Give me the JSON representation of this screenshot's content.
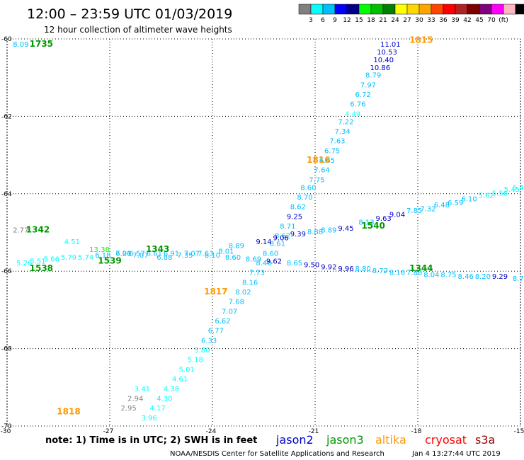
{
  "header": {
    "title": "12:00 – 23:59 UTC 01/03/2019",
    "subtitle": "12 hour collection of altimeter wave heights"
  },
  "colorbar": {
    "colors": [
      "#808080",
      "#00ffff",
      "#00bfff",
      "#0000ff",
      "#00008b",
      "#00ff00",
      "#00c000",
      "#008000",
      "#ffff00",
      "#ffd700",
      "#ffa500",
      "#ff4500",
      "#ff0000",
      "#b22222",
      "#800000",
      "#800080",
      "#ff00ff",
      "#ffb6c1",
      "#000000"
    ],
    "labels": [
      "3",
      "6",
      "9",
      "12",
      "15",
      "18",
      "21",
      "24",
      "27",
      "30",
      "33",
      "36",
      "39",
      "42",
      "45",
      "70",
      "(ft)"
    ]
  },
  "note": "note:  1) Time is in UTC; 2) SWH is in feet",
  "legend": [
    {
      "label": "jason2",
      "color": "#0000cc"
    },
    {
      "label": "jason3",
      "color": "#009900"
    },
    {
      "label": "altika",
      "color": "#ff9900"
    },
    {
      "label": "cryosat",
      "color": "#ff0000"
    },
    {
      "label": "s3a",
      "color": "#990000"
    }
  ],
  "footer": {
    "credit": "NOAA/NESDIS Center for Satellite Applications and Research",
    "timestamp": "Jan  4 13:27:44 UTC 2019"
  },
  "chart_data": {
    "type": "scatter",
    "title": "12:00 – 23:59 UTC 01/03/2019",
    "xlim": [
      -30,
      -15
    ],
    "ylim": [
      -70,
      -60
    ],
    "x_ticks": [
      -30,
      -27,
      -24,
      -21,
      -18,
      -15
    ],
    "x_tick_labels": [
      "-30",
      "-27",
      "-24",
      "-21",
      "-18",
      "-15"
    ],
    "y_ticks": [
      -70,
      -68,
      -66,
      -64,
      -62,
      -60
    ],
    "y_tick_labels": [
      "-70",
      "-68",
      "-66",
      "-64",
      "-62",
      "-60"
    ],
    "grid": true,
    "time_labels": [
      {
        "text": "1815",
        "x": -17.9,
        "y": -60.1,
        "color": "#ff9900"
      },
      {
        "text": "1735",
        "x": -29.0,
        "y": -60.2,
        "color": "#009900"
      },
      {
        "text": "1816",
        "x": -20.9,
        "y": -63.2,
        "color": "#ff9900"
      },
      {
        "text": "1342",
        "x": -29.1,
        "y": -65.0,
        "color": "#009900"
      },
      {
        "text": "1540",
        "x": -19.3,
        "y": -64.9,
        "color": "#009900"
      },
      {
        "text": "1343",
        "x": -25.6,
        "y": -65.5,
        "color": "#009900"
      },
      {
        "text": "1539",
        "x": -27.0,
        "y": -65.8,
        "color": "#009900"
      },
      {
        "text": "1538",
        "x": -29.0,
        "y": -66.0,
        "color": "#009900"
      },
      {
        "text": "1344",
        "x": -17.9,
        "y": -66.0,
        "color": "#009900"
      },
      {
        "text": "1817",
        "x": -23.9,
        "y": -66.6,
        "color": "#ff9900"
      },
      {
        "text": "1818",
        "x": -28.2,
        "y": -69.7,
        "color": "#ff9900"
      }
    ],
    "series": [
      {
        "name": "1815",
        "color": "#00008b",
        "points": [
          {
            "x": -18.8,
            "y": -60.2,
            "v": "11.01",
            "c": "#0000cc"
          },
          {
            "x": -18.9,
            "y": -60.4,
            "v": "10.53",
            "c": "#0000cc"
          },
          {
            "x": -19.0,
            "y": -60.6,
            "v": "10.40",
            "c": "#0000cc"
          },
          {
            "x": -19.1,
            "y": -60.8,
            "v": "10.86",
            "c": "#0000cc"
          },
          {
            "x": -19.3,
            "y": -61.0,
            "v": "8.79",
            "c": "#00bfff"
          },
          {
            "x": -19.45,
            "y": -61.25,
            "v": "7.97",
            "c": "#00bfff"
          },
          {
            "x": -19.6,
            "y": -61.5,
            "v": "6.72",
            "c": "#00bfff"
          },
          {
            "x": -19.75,
            "y": -61.75,
            "v": "6.76",
            "c": "#00bfff"
          },
          {
            "x": -19.9,
            "y": -62.0,
            "v": "4.49",
            "c": "#00ffff"
          },
          {
            "x": -20.1,
            "y": -62.2,
            "v": "7.22",
            "c": "#00bfff"
          },
          {
            "x": -20.2,
            "y": -62.45,
            "v": "7.34",
            "c": "#00bfff"
          },
          {
            "x": -20.35,
            "y": -62.7,
            "v": "7.63",
            "c": "#00bfff"
          },
          {
            "x": -20.5,
            "y": -62.95,
            "v": "6.75",
            "c": "#00bfff"
          },
          {
            "x": -20.65,
            "y": -63.2,
            "v": "6.65",
            "c": "#00bfff"
          },
          {
            "x": -20.8,
            "y": -63.45,
            "v": "7.64",
            "c": "#00bfff"
          },
          {
            "x": -20.95,
            "y": -63.7,
            "v": "7.75",
            "c": "#00bfff"
          },
          {
            "x": -21.2,
            "y": -63.9,
            "v": "8.60",
            "c": "#00bfff"
          },
          {
            "x": -21.3,
            "y": -64.15,
            "v": "8.70",
            "c": "#00bfff"
          },
          {
            "x": -21.5,
            "y": -64.4,
            "v": "8.62",
            "c": "#00bfff"
          },
          {
            "x": -21.6,
            "y": -64.65,
            "v": "9.25",
            "c": "#0000cc"
          },
          {
            "x": -21.8,
            "y": -64.9,
            "v": "8.71",
            "c": "#00bfff"
          },
          {
            "x": -21.95,
            "y": -65.15,
            "v": "8.62",
            "c": "#00bfff"
          },
          {
            "x": -22.1,
            "y": -65.35,
            "v": "8.61",
            "c": "#00bfff"
          },
          {
            "x": -22.3,
            "y": -65.6,
            "v": "8.60",
            "c": "#00bfff"
          },
          {
            "x": -22.5,
            "y": -65.85,
            "v": "8.40",
            "c": "#00bfff"
          },
          {
            "x": -22.7,
            "y": -66.1,
            "v": "7.73",
            "c": "#00bfff"
          },
          {
            "x": -22.9,
            "y": -66.35,
            "v": "8.16",
            "c": "#00bfff"
          },
          {
            "x": -23.1,
            "y": -66.6,
            "v": "8.02",
            "c": "#00bfff"
          },
          {
            "x": -23.3,
            "y": -66.85,
            "v": "7.68",
            "c": "#00bfff"
          },
          {
            "x": -23.5,
            "y": -67.1,
            "v": "7.07",
            "c": "#00bfff"
          },
          {
            "x": -23.7,
            "y": -67.35,
            "v": "6.62",
            "c": "#00bfff"
          },
          {
            "x": -23.9,
            "y": -67.6,
            "v": "6.77",
            "c": "#00bfff"
          },
          {
            "x": -24.1,
            "y": -67.85,
            "v": "6.33",
            "c": "#00bfff"
          },
          {
            "x": -24.3,
            "y": -68.1,
            "v": "5.80",
            "c": "#00ffff"
          },
          {
            "x": -24.5,
            "y": -68.35,
            "v": "5.18",
            "c": "#00ffff"
          },
          {
            "x": -24.75,
            "y": -68.6,
            "v": "5.01",
            "c": "#00ffff"
          },
          {
            "x": -24.95,
            "y": -68.85,
            "v": "4.61",
            "c": "#00ffff"
          },
          {
            "x": -25.2,
            "y": -69.1,
            "v": "4.38",
            "c": "#00ffff"
          },
          {
            "x": -25.4,
            "y": -69.35,
            "v": "4.30",
            "c": "#00ffff"
          },
          {
            "x": -25.6,
            "y": -69.6,
            "v": "4.17",
            "c": "#00ffff"
          },
          {
            "x": -25.85,
            "y": -69.85,
            "v": "3.96",
            "c": "#00ffff"
          },
          {
            "x": -26.05,
            "y": -69.1,
            "v": "3.41",
            "c": "#00ffff"
          },
          {
            "x": -26.25,
            "y": -69.35,
            "v": "2.94",
            "c": "#808080"
          },
          {
            "x": -26.45,
            "y": -69.6,
            "v": "2.95",
            "c": "#808080"
          }
        ]
      },
      {
        "name": "1342",
        "color": "#00bfff",
        "points": [
          {
            "x": -29.6,
            "y": -65.0,
            "v": "2.77",
            "c": "#808080"
          },
          {
            "x": -28.1,
            "y": -65.3,
            "v": "4.51",
            "c": "#00ffff"
          },
          {
            "x": -27.3,
            "y": -65.5,
            "v": "13.38",
            "c": "#00ff00"
          },
          {
            "x": -26.6,
            "y": -65.6,
            "v": "7.01",
            "c": "#00bfff"
          },
          {
            "x": -26.1,
            "y": -65.65,
            "v": "7.07",
            "c": "#00bfff"
          },
          {
            "x": -25.4,
            "y": -65.7,
            "v": "6.88",
            "c": "#00bfff"
          },
          {
            "x": -24.8,
            "y": -65.65,
            "v": "7.35",
            "c": "#00bfff"
          },
          {
            "x": -24.2,
            "y": -65.6,
            "v": "7.63",
            "c": "#00bfff"
          },
          {
            "x": -23.6,
            "y": -65.55,
            "v": "8.01",
            "c": "#00bfff"
          },
          {
            "x": -23.3,
            "y": -65.4,
            "v": "8.89",
            "c": "#00bfff"
          },
          {
            "x": -22.5,
            "y": -65.3,
            "v": "9.14",
            "c": "#0000cc"
          },
          {
            "x": -22.0,
            "y": -65.2,
            "v": "9.06",
            "c": "#0000cc"
          },
          {
            "x": -21.5,
            "y": -65.1,
            "v": "9.39",
            "c": "#0000cc"
          },
          {
            "x": -21.0,
            "y": -65.05,
            "v": "8.88",
            "c": "#00bfff"
          },
          {
            "x": -20.6,
            "y": -65.0,
            "v": "8.89",
            "c": "#00bfff"
          },
          {
            "x": -20.1,
            "y": -64.95,
            "v": "9.45",
            "c": "#0000cc"
          },
          {
            "x": -19.5,
            "y": -64.8,
            "v": "8.13",
            "c": "#00bfff"
          },
          {
            "x": -19.0,
            "y": -64.7,
            "v": "9.63",
            "c": "#0000cc"
          },
          {
            "x": -18.6,
            "y": -64.6,
            "v": "9.04",
            "c": "#0000cc"
          },
          {
            "x": -18.1,
            "y": -64.5,
            "v": "7.85",
            "c": "#00bfff"
          },
          {
            "x": -17.7,
            "y": -64.45,
            "v": "7.32",
            "c": "#00bfff"
          },
          {
            "x": -17.3,
            "y": -64.35,
            "v": "6.48",
            "c": "#00bfff"
          },
          {
            "x": -16.9,
            "y": -64.3,
            "v": "6.59",
            "c": "#00bfff"
          },
          {
            "x": -16.5,
            "y": -64.2,
            "v": "6.10",
            "c": "#00bfff"
          },
          {
            "x": -16.0,
            "y": -64.1,
            "v": "5.62",
            "c": "#00ffff"
          },
          {
            "x": -15.6,
            "y": -64.05,
            "v": "5.56",
            "c": "#00ffff"
          },
          {
            "x": -15.25,
            "y": -63.95,
            "v": "5.45",
            "c": "#00ffff"
          },
          {
            "x": -15.0,
            "y": -63.9,
            "v": "5.46",
            "c": "#00ffff"
          }
        ]
      },
      {
        "name": "1538",
        "color": "#00bfff",
        "points": [
          {
            "x": -29.5,
            "y": -65.85,
            "v": "5.26",
            "c": "#00ffff"
          },
          {
            "x": -29.1,
            "y": -65.8,
            "v": "5.51",
            "c": "#00ffff"
          },
          {
            "x": -28.7,
            "y": -65.75,
            "v": "5.66",
            "c": "#00ffff"
          },
          {
            "x": -28.2,
            "y": -65.7,
            "v": "5.79",
            "c": "#00ffff"
          },
          {
            "x": -27.7,
            "y": -65.7,
            "v": "5.74",
            "c": "#00ffff"
          },
          {
            "x": -27.2,
            "y": -65.65,
            "v": "6.18",
            "c": "#00bfff"
          },
          {
            "x": -26.6,
            "y": -65.6,
            "v": "6.26",
            "c": "#00bfff"
          },
          {
            "x": -26.2,
            "y": -65.6,
            "v": "6.57",
            "c": "#00bfff"
          },
          {
            "x": -25.7,
            "y": -65.6,
            "v": "6.61",
            "c": "#00bfff"
          },
          {
            "x": -25.2,
            "y": -65.6,
            "v": "6.91",
            "c": "#00bfff"
          },
          {
            "x": -24.6,
            "y": -65.6,
            "v": "7.07",
            "c": "#00bfff"
          },
          {
            "x": -24.0,
            "y": -65.65,
            "v": "8.10",
            "c": "#00bfff"
          },
          {
            "x": -23.4,
            "y": -65.7,
            "v": "8.60",
            "c": "#00bfff"
          },
          {
            "x": -22.8,
            "y": -65.75,
            "v": "8.69",
            "c": "#00bfff"
          },
          {
            "x": -22.2,
            "y": -65.8,
            "v": "9.62",
            "c": "#0000cc"
          },
          {
            "x": -21.6,
            "y": -65.85,
            "v": "8.65",
            "c": "#00bfff"
          },
          {
            "x": -21.1,
            "y": -65.9,
            "v": "9.50",
            "c": "#0000cc"
          },
          {
            "x": -20.6,
            "y": -65.95,
            "v": "9.92",
            "c": "#0000cc"
          },
          {
            "x": -20.1,
            "y": -66.0,
            "v": "9.96",
            "c": "#0000cc"
          },
          {
            "x": -19.6,
            "y": -66.0,
            "v": "8.80",
            "c": "#00bfff"
          },
          {
            "x": -19.1,
            "y": -66.05,
            "v": "8.72",
            "c": "#00bfff"
          },
          {
            "x": -18.6,
            "y": -66.1,
            "v": "8.16",
            "c": "#00bfff"
          },
          {
            "x": -18.1,
            "y": -66.1,
            "v": "7.86",
            "c": "#00bfff"
          },
          {
            "x": -17.6,
            "y": -66.15,
            "v": "8.04",
            "c": "#00bfff"
          },
          {
            "x": -17.1,
            "y": -66.15,
            "v": "8.75",
            "c": "#00bfff"
          },
          {
            "x": -16.6,
            "y": -66.2,
            "v": "8.46",
            "c": "#00bfff"
          },
          {
            "x": -16.1,
            "y": -66.2,
            "v": "8.20",
            "c": "#00bfff"
          },
          {
            "x": -15.6,
            "y": -66.2,
            "v": "9.29",
            "c": "#0000cc"
          },
          {
            "x": -15.0,
            "y": -66.25,
            "v": "8.78",
            "c": "#00bfff"
          }
        ]
      },
      {
        "name": "1735",
        "color": "#00bfff",
        "points": [
          {
            "x": -29.6,
            "y": -60.2,
            "v": "8.09",
            "c": "#00bfff"
          }
        ]
      }
    ]
  }
}
